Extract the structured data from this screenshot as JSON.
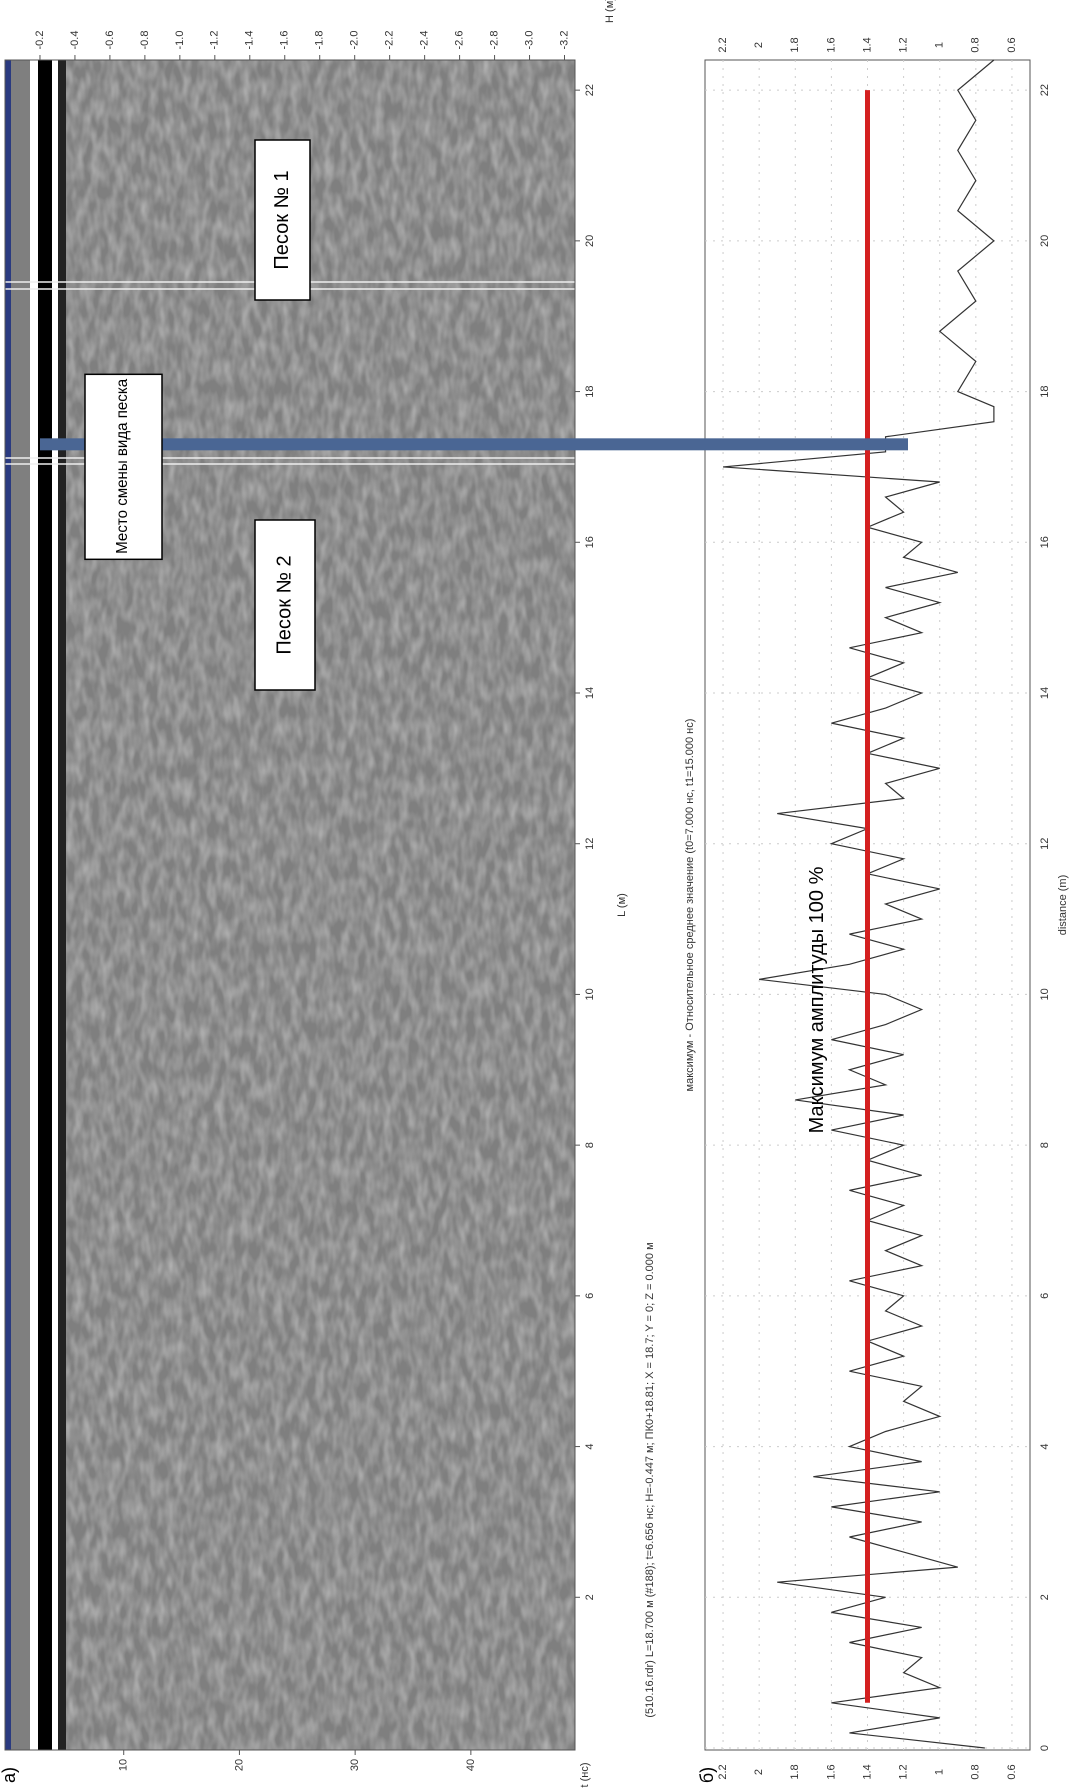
{
  "chart_data": [
    {
      "type": "radargram",
      "panel_label": "а)",
      "caption": "(510.16.rdr) L=18.700 м (#188); t=6.656 нс; H=-0.447 м; ПК0+18.81; X = 18.7; Y = 0; Z = 0.000 м",
      "xlabel": "L (м)",
      "ylabel": "t (нс)",
      "y2label": "H (м)",
      "xlim": [
        0,
        22.4
      ],
      "xticks": [
        2,
        4,
        6,
        8,
        10,
        12,
        14,
        16,
        18,
        20,
        22
      ],
      "ylim": [
        0,
        49
      ],
      "yticks": [
        10,
        20,
        30,
        40
      ],
      "y2lim": [
        0,
        -3.26
      ],
      "y2ticks": [
        -0.2,
        -0.4,
        -0.6,
        -0.8,
        {
          "value": -1,
          "label": "-1.0"
        },
        -1.2,
        -1.4,
        -1.6,
        -1.8,
        {
          "value": -2,
          "label": "-2.0"
        },
        -2.2,
        -2.4,
        -2.6,
        -2.8,
        {
          "value": -3,
          "label": "-3.0"
        },
        -3.2
      ],
      "regions": [
        "Песок № 1",
        "Песок № 2"
      ],
      "boundary": {
        "x": 17.3,
        "label": "Место смены вида песка",
        "color": "#4a6694"
      }
    },
    {
      "type": "line",
      "panel_label": "б)",
      "title": "максимум - Относительное среднее значение (t0=7.000 нс, t1=15.000 нс)",
      "xlabel": "distance (m)",
      "xlim": [
        0,
        22.4
      ],
      "xticks": [
        0,
        2,
        4,
        6,
        8,
        10,
        12,
        14,
        16,
        18,
        20,
        22
      ],
      "ylim": [
        0.5,
        2.3
      ],
      "yticks": [
        0.6,
        0.8,
        1,
        1.2,
        1.4,
        1.6,
        1.8,
        2,
        2.2
      ],
      "grid": true,
      "x": [
        0,
        0.2,
        0.4,
        0.6,
        0.8,
        1,
        1.2,
        1.4,
        1.6,
        1.8,
        2,
        2.2,
        2.4,
        2.6,
        2.8,
        3,
        3.2,
        3.4,
        3.6,
        3.8,
        4,
        4.2,
        4.4,
        4.6,
        4.8,
        5,
        5.2,
        5.4,
        5.6,
        5.8,
        6,
        6.2,
        6.4,
        6.6,
        6.8,
        7,
        7.2,
        7.4,
        7.6,
        7.8,
        8,
        8.2,
        8.4,
        8.6,
        8.8,
        9,
        9.2,
        9.4,
        9.6,
        9.8,
        10,
        10.2,
        10.4,
        10.6,
        10.8,
        11,
        11.2,
        11.4,
        11.6,
        11.8,
        12,
        12.2,
        12.4,
        12.6,
        12.8,
        13,
        13.2,
        13.4,
        13.6,
        13.8,
        14,
        14.2,
        14.4,
        14.6,
        14.8,
        15,
        15.2,
        15.4,
        15.6,
        15.8,
        16,
        16.2,
        16.4,
        16.6,
        16.8,
        17,
        17.2,
        17.4,
        17.6,
        17.8,
        18,
        18.4,
        18.8,
        19.2,
        19.6,
        20,
        20.4,
        20.8,
        21.2,
        21.6,
        22,
        22.4
      ],
      "series": [
        {
          "color": "#333333",
          "values": [
            0.75,
            1.5,
            1.0,
            1.6,
            1.0,
            1.2,
            1.1,
            1.5,
            1.1,
            1.6,
            1.3,
            1.9,
            0.9,
            1.2,
            1.5,
            1.1,
            1.6,
            1.0,
            1.7,
            1.1,
            1.5,
            1.3,
            1.0,
            1.2,
            1.1,
            1.5,
            1.2,
            1.4,
            1.1,
            1.3,
            1.2,
            1.5,
            1.1,
            1.3,
            1.1,
            1.4,
            1.2,
            1.5,
            1.1,
            1.4,
            1.2,
            1.6,
            1.2,
            1.8,
            1.3,
            1.5,
            1.2,
            1.6,
            1.3,
            1.1,
            1.3,
            2.0,
            1.5,
            1.2,
            1.5,
            1.1,
            1.3,
            1.0,
            1.4,
            1.2,
            1.6,
            1.4,
            1.9,
            1.2,
            1.3,
            1.0,
            1.4,
            1.2,
            1.6,
            1.3,
            1.1,
            1.4,
            1.2,
            1.5,
            1.1,
            1.3,
            1.0,
            1.3,
            0.9,
            1.2,
            1.1,
            1.4,
            1.2,
            1.3,
            1.0,
            2.2,
            1.3,
            1.3,
            0.7,
            0.7,
            0.9,
            0.8,
            1.0,
            0.8,
            0.9,
            0.7,
            0.9,
            0.8,
            0.9,
            0.8,
            0.9,
            0.7
          ]
        }
      ],
      "reference_line": {
        "value": 1.4,
        "from": 0.6,
        "to": 22,
        "color": "#d42020",
        "label": "Максимум амплитуды 100 %"
      }
    }
  ]
}
